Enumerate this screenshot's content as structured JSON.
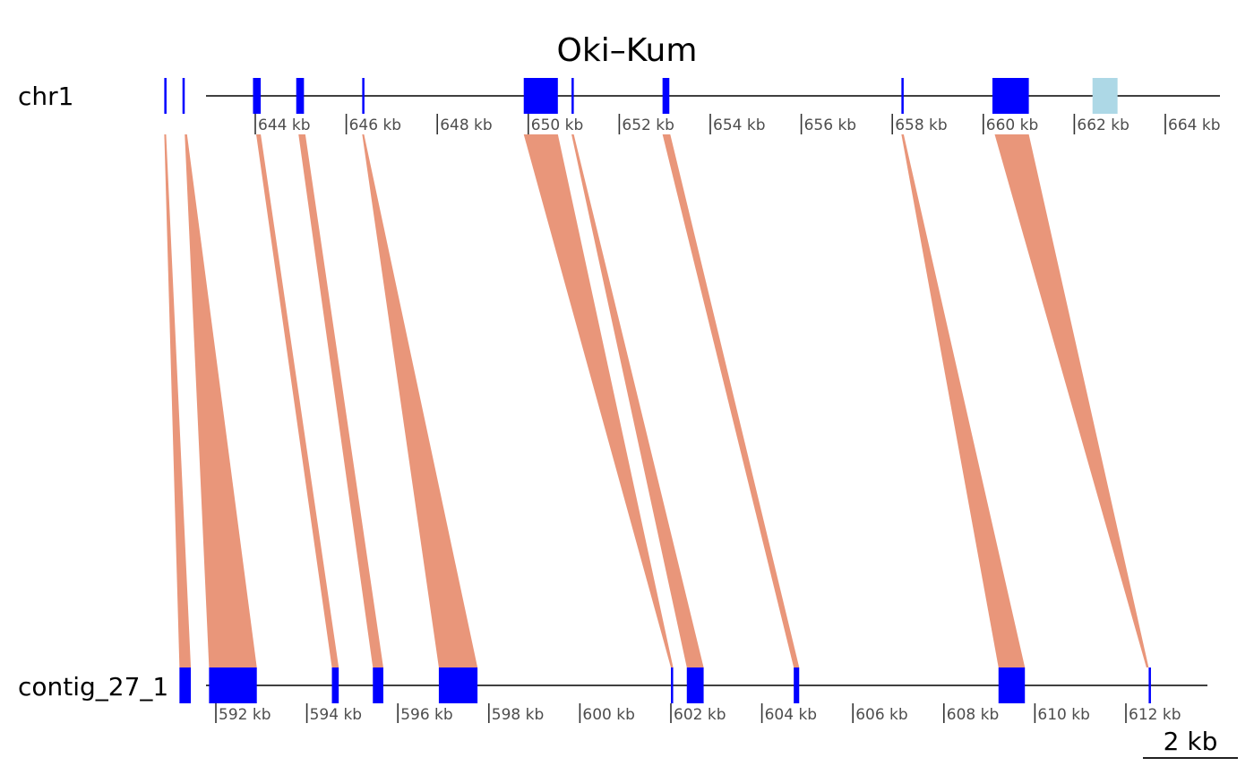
{
  "chart_data": {
    "type": "synteny",
    "title": "Oki–Kum",
    "colors": {
      "gene": "#0000FF",
      "gene_highlight": "#ADD8E6",
      "link": "#E9967A",
      "backbone": "#000000",
      "tick_text": "#4D4D4D"
    },
    "sequences": [
      {
        "name": "chr1",
        "range_kb": [
          641.6,
          666.0
        ],
        "ticks_kb": [
          644,
          646,
          648,
          650,
          652,
          654,
          656,
          658,
          660,
          662,
          664
        ],
        "tick_labels": [
          "644 kb",
          "646 kb",
          "648 kb",
          "650 kb",
          "652 kb",
          "654 kb",
          "656 kb",
          "658 kb",
          "660 kb",
          "662 kb",
          "664 kb"
        ],
        "genes_kb": [
          [
            642.0,
            642.05
          ],
          [
            642.4,
            642.45
          ],
          [
            643.95,
            644.12
          ],
          [
            644.9,
            645.07
          ],
          [
            646.35,
            646.39
          ],
          [
            649.9,
            650.65
          ],
          [
            650.95,
            651.0
          ],
          [
            652.95,
            653.1
          ],
          [
            658.2,
            658.25
          ],
          [
            660.2,
            661.0
          ],
          [
            662.4,
            662.95,
            "highlight"
          ]
        ]
      },
      {
        "name": "contig_27_1",
        "range_kb": [
          590.2,
          612.5
        ],
        "ticks_kb": [
          592,
          594,
          596,
          598,
          600,
          602,
          604,
          606,
          608,
          610,
          612
        ],
        "tick_labels": [
          "592 kb",
          "594 kb",
          "596 kb",
          "598 kb",
          "600 kb",
          "602 kb",
          "604 kb",
          "606 kb",
          "608 kb",
          "610 kb",
          "612 kb"
        ],
        "genes_kb": [
          [
            591.2,
            591.45
          ],
          [
            591.85,
            592.9
          ],
          [
            594.55,
            594.7
          ],
          [
            595.45,
            595.68
          ],
          [
            596.9,
            597.75
          ],
          [
            602.0,
            602.05
          ],
          [
            602.35,
            602.72
          ],
          [
            604.7,
            604.82
          ],
          [
            609.2,
            609.78
          ],
          [
            612.5,
            612.55
          ]
        ]
      }
    ],
    "links_kb": [
      {
        "top": [
          642.0,
          642.04
        ],
        "bottom": [
          591.2,
          591.45
        ]
      },
      {
        "top": [
          642.45,
          642.5
        ],
        "bottom": [
          591.85,
          592.9
        ]
      },
      {
        "top": [
          644.02,
          644.12
        ],
        "bottom": [
          594.55,
          594.7
        ]
      },
      {
        "top": [
          644.95,
          645.1
        ],
        "bottom": [
          595.45,
          595.68
        ]
      },
      {
        "top": [
          646.35,
          646.39
        ],
        "bottom": [
          596.9,
          597.75
        ]
      },
      {
        "top": [
          649.9,
          650.65
        ],
        "bottom": [
          602.0,
          602.05
        ]
      },
      {
        "top": [
          650.95,
          651.0
        ],
        "bottom": [
          602.35,
          602.72
        ]
      },
      {
        "top": [
          652.95,
          653.12
        ],
        "bottom": [
          604.7,
          604.82
        ]
      },
      {
        "top": [
          658.2,
          658.25
        ],
        "bottom": [
          609.2,
          609.78
        ]
      },
      {
        "top": [
          660.25,
          661.0
        ],
        "bottom": [
          612.45,
          612.5
        ]
      }
    ],
    "scale_bar": {
      "label": "2 kb",
      "length_kb": 2
    }
  }
}
